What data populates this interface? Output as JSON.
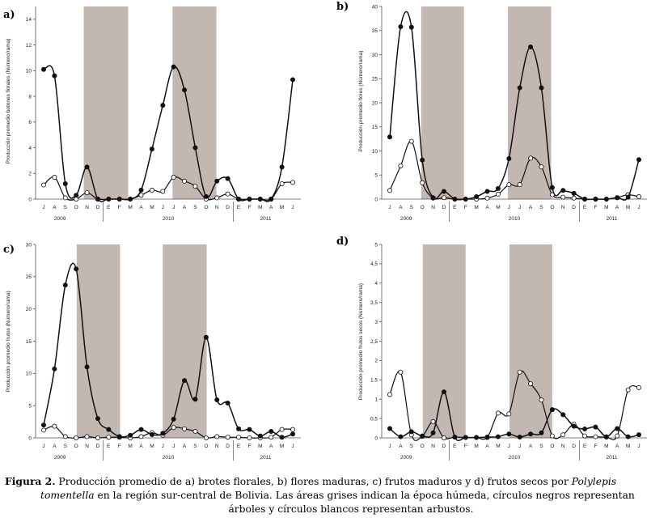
{
  "caption": {
    "label": "Figura 2.",
    "line1": " Producción promedio de a) brotes florales, b) flores maduras, c) frutos maduros y d) frutos secos por ",
    "species_a": "Polylepis",
    "species_b": "tomentella",
    "line2": " en la región sur-central de Bolivia. Las áreas grises indican la época húmeda, círculos negros representan",
    "line3": "árboles y círculos blancos representan arbustos."
  },
  "colors": {
    "wet_season": "#c2b8b1",
    "series_line": "#111111",
    "trees": "#111111",
    "shrubs": "#ffffff"
  },
  "month_labels": [
    "J",
    "A",
    "S",
    "O",
    "N",
    "D",
    "E",
    "F",
    "M",
    "A",
    "M",
    "J",
    "J",
    "A",
    "S",
    "O",
    "N",
    "D",
    "E",
    "F",
    "M",
    "A",
    "M",
    "J"
  ],
  "year_labels": [
    "2009",
    "2010",
    "2011"
  ],
  "chart_data": [
    {
      "type": "line",
      "panel_label": "a)",
      "ylabel": "Producción promedio botones florales (Número/rama)",
      "ylim": [
        0,
        15
      ],
      "yticks": [
        0,
        2,
        4,
        6,
        8,
        10,
        12,
        14
      ],
      "wet_season": [
        [
          3.7,
          7.8
        ],
        [
          11.9,
          15.95
        ]
      ],
      "series": [
        {
          "marker": "filled",
          "values": [
            10.1,
            9.6,
            1.2,
            0.3,
            2.5,
            0,
            0,
            0,
            0,
            0.7,
            3.9,
            7.3,
            10.3,
            8.5,
            4.0,
            0.2,
            1.4,
            1.6,
            0,
            0,
            0,
            0,
            2.5,
            9.3
          ]
        },
        {
          "marker": "open",
          "values": [
            1.1,
            1.7,
            0.1,
            0,
            0.5,
            0,
            0,
            0,
            0,
            0.3,
            0.7,
            0.6,
            1.7,
            1.4,
            1.0,
            0,
            0.1,
            0.4,
            0,
            0,
            0,
            0,
            1.2,
            1.3
          ]
        }
      ]
    },
    {
      "type": "line",
      "panel_label": "b)",
      "ylabel": "Producción promedio flores (Número/rama)",
      "ylim": [
        0,
        40
      ],
      "yticks": [
        0,
        5,
        10,
        15,
        20,
        25,
        30,
        35,
        40
      ],
      "wet_season": [
        [
          2.9,
          6.85
        ],
        [
          10.9,
          14.9
        ]
      ],
      "series": [
        {
          "marker": "filled",
          "values": [
            12.9,
            35.8,
            35.7,
            8.1,
            0.3,
            1.6,
            0,
            0,
            0.5,
            1.6,
            2.2,
            8.4,
            23.1,
            31.6,
            23.1,
            2.4,
            1.8,
            1.2,
            0,
            0,
            0,
            0.3,
            0.4,
            8.2
          ]
        },
        {
          "marker": "open",
          "values": [
            1.8,
            6.9,
            12.0,
            3.4,
            0.2,
            0.3,
            0,
            0,
            0,
            0.2,
            1.0,
            3.0,
            3.0,
            8.5,
            6.7,
            0.9,
            0.4,
            0.2,
            0,
            0,
            0,
            0.3,
            0.9,
            0.5
          ]
        }
      ]
    },
    {
      "type": "line",
      "panel_label": "c)",
      "ylabel": "Producción promedio frutos (Número/rama)",
      "ylim": [
        0,
        30
      ],
      "yticks": [
        0,
        5,
        10,
        15,
        20,
        25,
        30
      ],
      "wet_season": [
        [
          3.05,
          7.05
        ],
        [
          11.0,
          15.05
        ]
      ],
      "series": [
        {
          "marker": "filled",
          "values": [
            2.0,
            10.7,
            23.7,
            26.2,
            11.0,
            3.0,
            1.3,
            0.2,
            0.4,
            1.3,
            0.5,
            0.7,
            2.9,
            8.9,
            6.0,
            15.6,
            5.9,
            5.4,
            1.4,
            1.3,
            0.3,
            1.0,
            0.1,
            0.6
          ]
        },
        {
          "marker": "open",
          "values": [
            1.2,
            1.8,
            0.2,
            0,
            0.2,
            0,
            0.1,
            0.1,
            0,
            0.2,
            0.8,
            0.4,
            1.6,
            1.4,
            1.0,
            0,
            0.2,
            0.1,
            0.1,
            0,
            0,
            0.1,
            1.3,
            1.3
          ]
        }
      ]
    },
    {
      "type": "line",
      "panel_label": "d)",
      "ylabel": "Producción promedio frutos secos (Número/rama)",
      "ylim": [
        0,
        5
      ],
      "yticks": [
        0,
        0.5,
        1,
        1.5,
        2,
        2.5,
        3,
        3.5,
        4,
        4.5,
        5
      ],
      "wet_season": [
        [
          3.05,
          7.0
        ],
        [
          11.05,
          15.0
        ]
      ],
      "series": [
        {
          "marker": "filled",
          "values": [
            0.24,
            0.03,
            0.16,
            0.05,
            0.13,
            1.19,
            0.02,
            0.01,
            0.01,
            0.02,
            0.03,
            0.1,
            0.02,
            0.1,
            0.13,
            0.73,
            0.6,
            0.3,
            0.23,
            0.28,
            0.03,
            0.24,
            0.03,
            0.08
          ]
        },
        {
          "marker": "open",
          "values": [
            1.12,
            1.7,
            0.08,
            0.04,
            0.42,
            0,
            0.02,
            0.01,
            0.01,
            0.01,
            0.64,
            0.62,
            1.7,
            1.4,
            0.98,
            0.05,
            0.08,
            0.35,
            0.05,
            0.03,
            0.02,
            0.05,
            1.24,
            1.3
          ]
        }
      ]
    }
  ]
}
